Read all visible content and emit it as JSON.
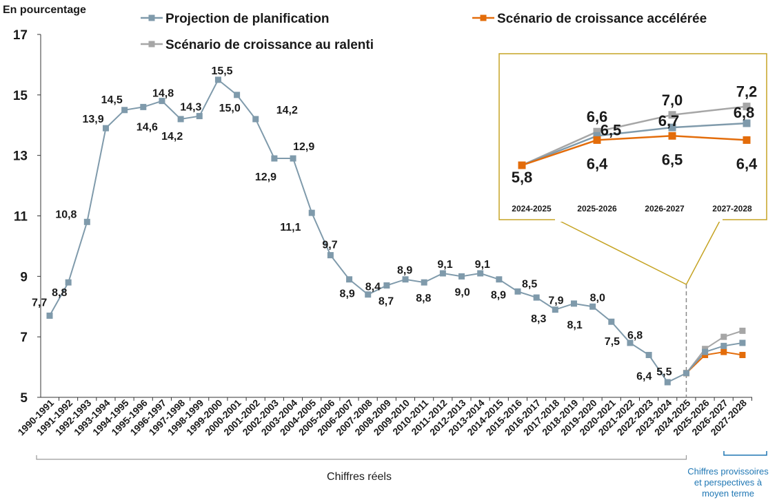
{
  "chart_data": {
    "type": "line",
    "ylabel": "En pourcentage",
    "ylim": [
      5,
      17
    ],
    "yticks": [
      "5",
      "7",
      "9",
      "11",
      "13",
      "15",
      "17"
    ],
    "categories": [
      "1990-1991",
      "1991-1992",
      "1992-1993",
      "1993-1994",
      "1994-1995",
      "1995-1996",
      "1996-1997",
      "1997-1998",
      "1998-1999",
      "1999-2000",
      "2000-2001",
      "2001-2002",
      "2002-2003",
      "2003-2004",
      "2004-2005",
      "2005-2006",
      "2006-2007",
      "2007-2008",
      "2008-2009",
      "2009-2010",
      "2010-2011",
      "2011-2012",
      "2012-2013",
      "2013-2014",
      "2014-2015",
      "2015-2016",
      "2016-2017",
      "2017-2018",
      "2018-2019",
      "2019-2020",
      "2020-2021",
      "2021-2022",
      "2022-2023",
      "2023-2024",
      "2024-2025",
      "2025-2026",
      "2026-2027",
      "2027-2028"
    ],
    "series": [
      {
        "name": "Projection de planification",
        "color": "#7f9aab",
        "values": [
          7.7,
          8.8,
          10.8,
          13.9,
          14.5,
          14.6,
          14.8,
          14.2,
          14.3,
          15.5,
          15.0,
          14.2,
          12.9,
          12.9,
          11.1,
          9.7,
          8.9,
          8.4,
          8.7,
          8.9,
          8.8,
          9.1,
          9.0,
          9.1,
          8.9,
          8.5,
          8.3,
          7.9,
          8.1,
          8.0,
          7.5,
          6.8,
          6.4,
          5.5,
          5.8,
          6.5,
          6.7,
          6.8
        ],
        "labels": [
          "7,7",
          "8,8",
          "10,8",
          "13,9",
          "14,5",
          "14,6",
          "14,8",
          "14,2",
          "14,3",
          "15,5",
          "15,0",
          "14,2",
          "12,9",
          "12,9",
          "11,1",
          "9,7",
          "8,9",
          "8,4",
          "8,7",
          "8,9",
          "8,8",
          "9,1",
          "9,0",
          "9,1",
          "8,9",
          "8,5",
          "8,3",
          "7,9",
          "8,1",
          "8,0",
          "7,5",
          "6,8",
          "6,4",
          "5,5",
          "",
          "",
          "",
          ""
        ]
      },
      {
        "name": "Scénario de croissance accélérée",
        "color": "#e36c0a",
        "values": [
          null,
          null,
          null,
          null,
          null,
          null,
          null,
          null,
          null,
          null,
          null,
          null,
          null,
          null,
          null,
          null,
          null,
          null,
          null,
          null,
          null,
          null,
          null,
          null,
          null,
          null,
          null,
          null,
          null,
          null,
          null,
          null,
          null,
          null,
          5.8,
          6.4,
          6.5,
          6.4
        ]
      },
      {
        "name": "Scénario de croissance au ralenti",
        "color": "#a6a6a6",
        "values": [
          null,
          null,
          null,
          null,
          null,
          null,
          null,
          null,
          null,
          null,
          null,
          null,
          null,
          null,
          null,
          null,
          null,
          null,
          null,
          null,
          null,
          null,
          null,
          null,
          null,
          null,
          null,
          null,
          null,
          null,
          null,
          null,
          null,
          null,
          5.8,
          6.6,
          7.0,
          7.2
        ]
      }
    ],
    "inset": {
      "categories": [
        "2024-2025",
        "2025-2026",
        "2026-2027",
        "2027-2028"
      ],
      "planification": [
        5.8,
        6.5,
        6.7,
        6.8
      ],
      "acceleree": [
        5.8,
        6.4,
        6.5,
        6.4
      ],
      "ralenti": [
        5.8,
        6.6,
        7.0,
        7.2
      ],
      "labels": {
        "start": "5,8",
        "plan": [
          "",
          "6,5",
          "6,7",
          "6,8"
        ],
        "acc": [
          "",
          "6,4",
          "6,5",
          "6,4"
        ],
        "ral": [
          "",
          "6,6",
          "7,0",
          "7,2"
        ]
      },
      "border_color": "#c5a323"
    },
    "notes": {
      "actual": "Chiffres réels",
      "forecast_lines": [
        "Chiffres provissoires",
        "et perspectives à",
        "moyen terme"
      ]
    },
    "legend_position": "top"
  }
}
